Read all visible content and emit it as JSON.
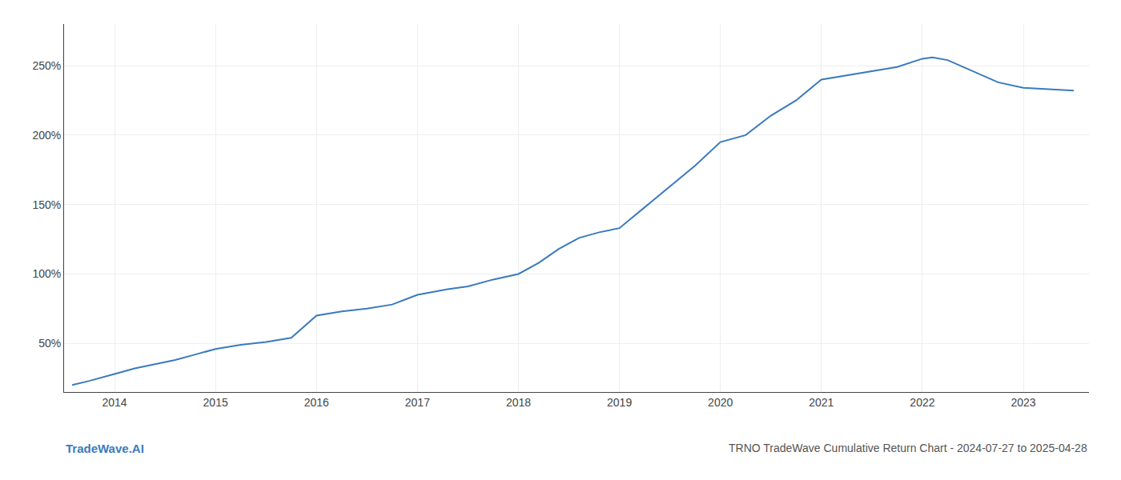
{
  "chart_data": {
    "type": "line",
    "title": "TRNO TradeWave Cumulative Return Chart - 2024-07-27 to 2025-04-28",
    "annotations": [
      "TradeWave.AI"
    ],
    "color": "#3a7abf",
    "grid": true,
    "x": [
      2013.58,
      2013.75,
      2014.0,
      2014.2,
      2014.4,
      2014.6,
      2014.8,
      2015.0,
      2015.25,
      2015.5,
      2015.75,
      2016.0,
      2016.25,
      2016.5,
      2016.75,
      2017.0,
      2017.15,
      2017.3,
      2017.5,
      2017.75,
      2018.0,
      2018.2,
      2018.4,
      2018.6,
      2018.8,
      2019.0,
      2019.25,
      2019.5,
      2019.75,
      2020.0,
      2020.1,
      2020.25,
      2020.5,
      2020.75,
      2021.0,
      2021.25,
      2021.5,
      2021.75,
      2022.0,
      2022.1,
      2022.25,
      2022.5,
      2022.75,
      2023.0,
      2023.25,
      2023.5
    ],
    "values": [
      20,
      23,
      28,
      32,
      35,
      38,
      42,
      46,
      49,
      51,
      54,
      70,
      73,
      75,
      78,
      85,
      87,
      89,
      91,
      96,
      100,
      108,
      118,
      126,
      130,
      133,
      148,
      163,
      178,
      195,
      197,
      200,
      214,
      225,
      240,
      243,
      246,
      249,
      255,
      256,
      254,
      246,
      238,
      234,
      233,
      232
    ],
    "xlim": [
      2013.5,
      2023.65
    ],
    "xticks": [
      2014,
      2015,
      2016,
      2017,
      2018,
      2019,
      2020,
      2021,
      2022,
      2023
    ],
    "ylim": [
      15,
      280
    ],
    "yticks": [
      {
        "value": 50,
        "label": "50%"
      },
      {
        "value": 100,
        "label": "100%"
      },
      {
        "value": 150,
        "label": "150%"
      },
      {
        "value": 200,
        "label": "200%"
      },
      {
        "value": 250,
        "label": "250%"
      }
    ]
  }
}
